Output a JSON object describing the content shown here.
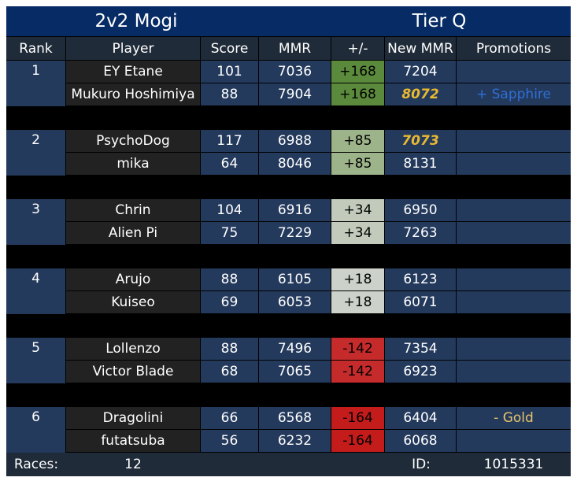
{
  "header": {
    "mode": "2v2 Mogi",
    "tier": "Tier Q"
  },
  "columns": [
    "Rank",
    "Player",
    "Score",
    "MMR",
    "+/-",
    "New MMR",
    "Promotions"
  ],
  "teams": [
    {
      "rank": "1",
      "players": [
        {
          "name": "EY Etane",
          "score": "101",
          "mmr": "7036",
          "delta": "+168",
          "delta_color": "#5b8a3c",
          "new_mmr": "7204",
          "new_mmr_highlight": false,
          "promotion": "",
          "promotion_color": ""
        },
        {
          "name": "Mukuro Hoshimiya",
          "score": "88",
          "mmr": "7904",
          "delta": "+168",
          "delta_color": "#5b8a3c",
          "new_mmr": "8072",
          "new_mmr_highlight": true,
          "promotion": "+ Sapphire",
          "promotion_color": "#2e6fd6"
        }
      ]
    },
    {
      "rank": "2",
      "players": [
        {
          "name": "PsychoDog",
          "score": "117",
          "mmr": "6988",
          "delta": "+85",
          "delta_color": "#9db38a",
          "new_mmr": "7073",
          "new_mmr_highlight": true,
          "promotion": "",
          "promotion_color": ""
        },
        {
          "name": "mika",
          "score": "64",
          "mmr": "8046",
          "delta": "+85",
          "delta_color": "#9db38a",
          "new_mmr": "8131",
          "new_mmr_highlight": false,
          "promotion": "",
          "promotion_color": ""
        }
      ]
    },
    {
      "rank": "3",
      "players": [
        {
          "name": "Chrin",
          "score": "104",
          "mmr": "6916",
          "delta": "+34",
          "delta_color": "#c2cbbb",
          "new_mmr": "6950",
          "new_mmr_highlight": false,
          "promotion": "",
          "promotion_color": ""
        },
        {
          "name": "Alien Pi",
          "score": "75",
          "mmr": "7229",
          "delta": "+34",
          "delta_color": "#c2cbbb",
          "new_mmr": "7263",
          "new_mmr_highlight": false,
          "promotion": "",
          "promotion_color": ""
        }
      ]
    },
    {
      "rank": "4",
      "players": [
        {
          "name": "Arujo",
          "score": "88",
          "mmr": "6105",
          "delta": "+18",
          "delta_color": "#ccd1ca",
          "new_mmr": "6123",
          "new_mmr_highlight": false,
          "promotion": "",
          "promotion_color": ""
        },
        {
          "name": "Kuiseo",
          "score": "69",
          "mmr": "6053",
          "delta": "+18",
          "delta_color": "#ccd1ca",
          "new_mmr": "6071",
          "new_mmr_highlight": false,
          "promotion": "",
          "promotion_color": ""
        }
      ]
    },
    {
      "rank": "5",
      "players": [
        {
          "name": "Lollenzo",
          "score": "88",
          "mmr": "7496",
          "delta": "-142",
          "delta_color": "#c62b2b",
          "new_mmr": "7354",
          "new_mmr_highlight": false,
          "promotion": "",
          "promotion_color": ""
        },
        {
          "name": "Victor Blade",
          "score": "68",
          "mmr": "7065",
          "delta": "-142",
          "delta_color": "#c62b2b",
          "new_mmr": "6923",
          "new_mmr_highlight": false,
          "promotion": "",
          "promotion_color": ""
        }
      ]
    },
    {
      "rank": "6",
      "players": [
        {
          "name": "Dragolini",
          "score": "66",
          "mmr": "6568",
          "delta": "-164",
          "delta_color": "#c41b1b",
          "new_mmr": "6404",
          "new_mmr_highlight": false,
          "promotion": "- Gold",
          "promotion_color": "#e8c46a"
        },
        {
          "name": "futatsuba",
          "score": "56",
          "mmr": "6232",
          "delta": "-164",
          "delta_color": "#c41b1b",
          "new_mmr": "6068",
          "new_mmr_highlight": false,
          "promotion": "",
          "promotion_color": ""
        }
      ]
    }
  ],
  "footer": {
    "races_label": "Races:",
    "races_value": "12",
    "id_label": "ID:",
    "id_value": "1015331"
  },
  "colors": {
    "title_bg": "#072b64",
    "header_bg": "#1f2b38",
    "player_bg": "#222222",
    "stat_bg": "#243a5c",
    "highlight_mmr": "#e8b931"
  }
}
